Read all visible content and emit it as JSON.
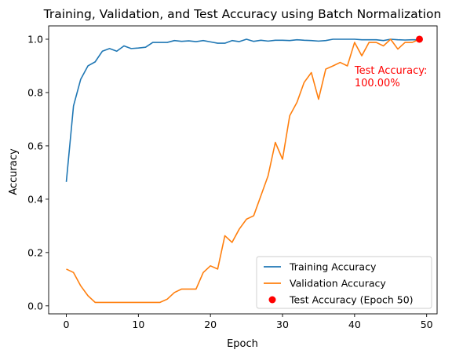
{
  "chart_data": {
    "type": "line",
    "title": "Training, Validation, and Test Accuracy using Batch Normalization",
    "xlabel": "Epoch",
    "ylabel": "Accuracy",
    "xlim": [
      -2.45,
      51.45
    ],
    "ylim": [
      -0.03,
      1.05
    ],
    "xticks": [
      0,
      10,
      20,
      30,
      40,
      50
    ],
    "yticks": [
      0.0,
      0.2,
      0.4,
      0.6,
      0.8,
      1.0
    ],
    "ytick_labels": [
      "0.0",
      "0.2",
      "0.4",
      "0.6",
      "0.8",
      "1.0"
    ],
    "grid": false,
    "legend_position": "lower-right",
    "series": [
      {
        "name": "Training Accuracy",
        "color": "#1f77b4",
        "x": [
          0,
          1,
          2,
          3,
          4,
          5,
          6,
          7,
          8,
          9,
          10,
          11,
          12,
          13,
          14,
          15,
          16,
          17,
          18,
          19,
          20,
          21,
          22,
          23,
          24,
          25,
          26,
          27,
          28,
          29,
          30,
          31,
          32,
          33,
          34,
          35,
          36,
          37,
          38,
          39,
          40,
          41,
          42,
          43,
          44,
          45,
          46,
          47,
          48,
          49
        ],
        "values": [
          0.465,
          0.75,
          0.85,
          0.9,
          0.915,
          0.955,
          0.965,
          0.955,
          0.975,
          0.965,
          0.967,
          0.97,
          0.988,
          0.988,
          0.988,
          0.995,
          0.992,
          0.994,
          0.991,
          0.995,
          0.99,
          0.985,
          0.985,
          0.995,
          0.991,
          1.0,
          0.992,
          0.996,
          0.993,
          0.996,
          0.996,
          0.995,
          0.998,
          0.996,
          0.995,
          0.993,
          0.995,
          1.0,
          1.0,
          1.0,
          1.0,
          0.998,
          0.998,
          0.998,
          0.995,
          1.0,
          0.998,
          0.997,
          0.998,
          0.998
        ]
      },
      {
        "name": "Validation Accuracy",
        "color": "#ff7f0e",
        "x": [
          0,
          1,
          2,
          3,
          4,
          5,
          6,
          7,
          8,
          9,
          10,
          11,
          12,
          13,
          14,
          15,
          16,
          17,
          18,
          19,
          20,
          21,
          22,
          23,
          24,
          25,
          26,
          27,
          28,
          29,
          30,
          31,
          32,
          33,
          34,
          35,
          36,
          37,
          38,
          39,
          40,
          41,
          42,
          43,
          44,
          45,
          46,
          47,
          48,
          49
        ],
        "values": [
          0.138,
          0.125,
          0.075,
          0.038,
          0.013,
          0.013,
          0.013,
          0.013,
          0.013,
          0.013,
          0.013,
          0.013,
          0.013,
          0.013,
          0.025,
          0.05,
          0.063,
          0.063,
          0.063,
          0.125,
          0.15,
          0.138,
          0.263,
          0.238,
          0.288,
          0.325,
          0.338,
          0.413,
          0.488,
          0.613,
          0.55,
          0.713,
          0.763,
          0.838,
          0.875,
          0.775,
          0.888,
          0.9,
          0.913,
          0.9,
          0.988,
          0.938,
          0.988,
          0.988,
          0.975,
          1.0,
          0.963,
          0.988,
          0.988,
          1.0
        ]
      }
    ],
    "points": [
      {
        "name": "Test Accuracy (Epoch 50)",
        "color": "#ff0000",
        "x": 49,
        "y": 1.0
      }
    ],
    "annotation": {
      "lines": [
        "Test Accuracy:",
        "100.00%"
      ],
      "color": "#ff0000",
      "x": 40,
      "y": 0.82
    }
  }
}
